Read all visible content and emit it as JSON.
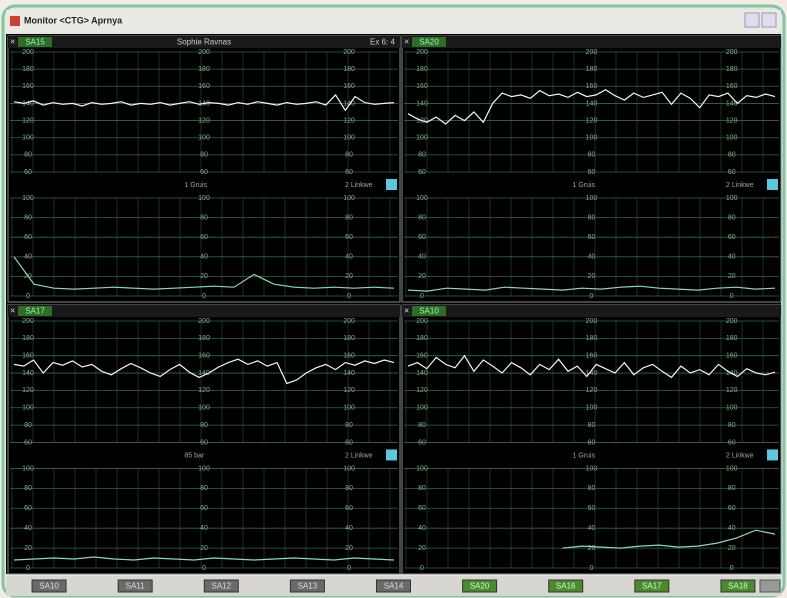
{
  "window": {
    "title": "Monitor <CTG> Aprnya"
  },
  "scales": {
    "fhr": [
      200,
      180,
      160,
      140,
      120,
      100,
      80,
      60
    ],
    "fhr_lim": [
      60,
      200
    ],
    "toco": [
      100,
      80,
      60,
      40,
      20,
      0
    ],
    "toco_lim": [
      0,
      100
    ]
  },
  "panels": [
    {
      "label": "SA15",
      "patient": "Sophie Ravnas",
      "info": "Ex 6: 4",
      "channel1": "1 Gruis",
      "channel2": "2 Linkwe",
      "fhr": [
        142,
        140,
        143,
        138,
        141,
        139,
        140,
        137,
        141,
        139,
        140,
        142,
        138,
        140,
        139,
        141,
        138,
        140,
        142,
        139,
        141,
        140,
        138,
        141,
        139,
        142,
        140,
        138,
        141,
        139,
        140,
        142,
        138,
        150,
        132,
        148,
        141,
        139,
        140,
        141
      ],
      "toco": [
        40,
        12,
        8,
        7,
        8,
        9,
        8,
        7,
        8,
        9,
        10,
        9,
        22,
        12,
        9,
        8,
        9,
        8,
        9,
        8
      ]
    },
    {
      "label": "SA20",
      "channel1": "1 Gruis",
      "channel2": "2 Linkwe",
      "fhr": [
        128,
        122,
        118,
        124,
        116,
        126,
        120,
        130,
        118,
        140,
        152,
        148,
        150,
        146,
        155,
        149,
        151,
        147,
        153,
        148,
        150,
        156,
        149,
        144,
        152,
        147,
        150,
        153,
        139,
        152,
        146,
        135,
        150,
        148,
        152,
        140,
        149,
        147,
        151,
        148
      ],
      "toco": [
        6,
        5,
        8,
        7,
        6,
        9,
        8,
        7,
        6,
        8,
        7,
        9,
        10,
        8,
        7,
        6,
        8,
        9,
        7,
        8
      ]
    },
    {
      "label": "SA17",
      "channel1": "85 bar",
      "channel2": "2 Linkwe",
      "fhr": [
        150,
        148,
        155,
        140,
        152,
        149,
        154,
        147,
        150,
        142,
        138,
        145,
        151,
        146,
        140,
        136,
        144,
        150,
        141,
        135,
        140,
        147,
        152,
        156,
        150,
        154,
        148,
        152,
        128,
        132,
        140,
        146,
        150,
        144,
        152,
        149,
        154,
        151,
        155,
        152
      ],
      "toco": [
        8,
        9,
        10,
        9,
        11,
        9,
        8,
        10,
        9,
        8,
        10,
        9,
        8,
        9,
        10,
        9,
        8,
        10,
        9,
        8
      ]
    },
    {
      "label": "SA10",
      "channel1": "1 Gruis",
      "channel2": "2 Linkwe",
      "fhr": [
        148,
        152,
        145,
        158,
        150,
        146,
        160,
        142,
        155,
        148,
        140,
        152,
        146,
        138,
        150,
        144,
        156,
        142,
        148,
        136,
        150,
        145,
        140,
        152,
        138,
        146,
        150,
        142,
        135,
        148,
        140,
        144,
        138,
        150,
        142,
        136,
        145,
        140,
        138,
        141
      ],
      "toco": [
        null,
        null,
        null,
        null,
        null,
        null,
        null,
        null,
        20,
        22,
        21,
        20,
        22,
        23,
        21,
        22,
        25,
        30,
        38,
        34
      ]
    }
  ],
  "tabs": [
    {
      "label": "SA10",
      "active": false
    },
    {
      "label": "SA11",
      "active": false
    },
    {
      "label": "SA12",
      "active": false
    },
    {
      "label": "SA13",
      "active": false
    },
    {
      "label": "SA14",
      "active": false
    },
    {
      "label": "SA20",
      "active": true
    },
    {
      "label": "SA16",
      "active": true
    },
    {
      "label": "SA17",
      "active": true
    },
    {
      "label": "SA18",
      "active": true
    }
  ]
}
